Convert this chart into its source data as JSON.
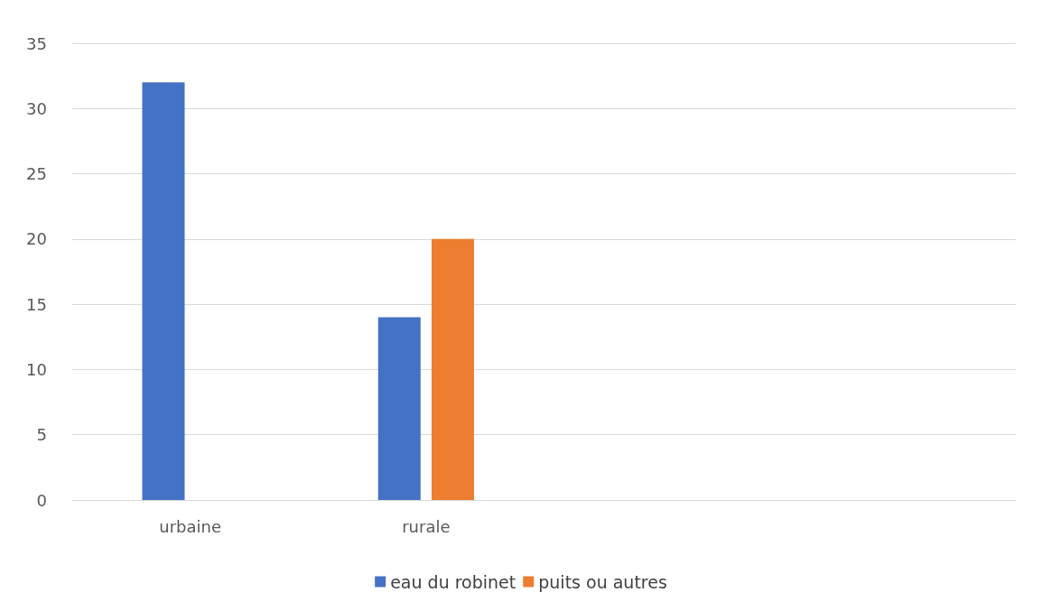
{
  "chart_data": {
    "type": "bar",
    "categories": [
      "urbaine",
      "rurale",
      null,
      null
    ],
    "series": [
      {
        "name": "eau du robinet",
        "color": "#4472c4",
        "values": [
          32,
          14,
          null,
          null
        ]
      },
      {
        "name": "puits ou autres",
        "color": "#ed7d31",
        "values": [
          null,
          20,
          null,
          null
        ]
      }
    ],
    "ylim": [
      0,
      35
    ],
    "yticks": [
      0,
      5,
      10,
      15,
      20,
      25,
      30,
      35
    ],
    "grid": "y",
    "legend": "bottom"
  }
}
